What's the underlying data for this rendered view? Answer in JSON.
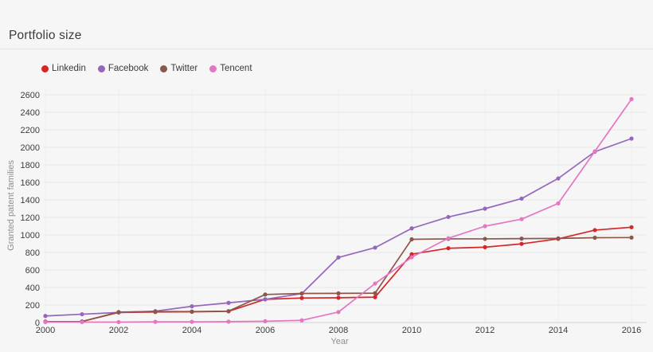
{
  "header": {
    "title": "Portfolio size"
  },
  "accent_colors": {
    "linkedin": "#d62728",
    "facebook": "#9467bd",
    "twitter": "#8c564b",
    "tencent": "#e377c2"
  },
  "chart_data": {
    "type": "line",
    "title": "Portfolio size",
    "xlabel": "Year",
    "ylabel": "Granted patent families",
    "x": [
      2000,
      2001,
      2002,
      2003,
      2004,
      2005,
      2006,
      2007,
      2008,
      2009,
      2010,
      2011,
      2012,
      2013,
      2014,
      2015,
      2016
    ],
    "series": [
      {
        "name": "Linkedin",
        "color": "#d62728",
        "values": [
          10,
          12,
          115,
          120,
          122,
          128,
          265,
          280,
          283,
          290,
          780,
          848,
          860,
          898,
          955,
          1055,
          1088
        ]
      },
      {
        "name": "Facebook",
        "color": "#9467bd",
        "values": [
          75,
          95,
          115,
          130,
          185,
          225,
          265,
          330,
          743,
          855,
          1075,
          1205,
          1300,
          1415,
          1645,
          1950,
          2100
        ]
      },
      {
        "name": "Twitter",
        "color": "#8c564b",
        "values": [
          10,
          12,
          120,
          125,
          125,
          130,
          320,
          332,
          333,
          335,
          950,
          955,
          955,
          958,
          960,
          968,
          970
        ]
      },
      {
        "name": "Tencent",
        "color": "#e377c2",
        "values": [
          5,
          5,
          5,
          8,
          8,
          10,
          15,
          25,
          120,
          445,
          745,
          962,
          1100,
          1180,
          1360,
          1955,
          2550
        ]
      }
    ],
    "yticks": [
      0,
      200,
      400,
      600,
      800,
      1000,
      1200,
      1400,
      1600,
      1800,
      2000,
      2200,
      2400,
      2600
    ],
    "xticks": [
      2000,
      2002,
      2004,
      2006,
      2008,
      2010,
      2012,
      2014,
      2016
    ],
    "ylim": [
      0,
      2650
    ],
    "grid": true,
    "legend_position": "top-left"
  }
}
